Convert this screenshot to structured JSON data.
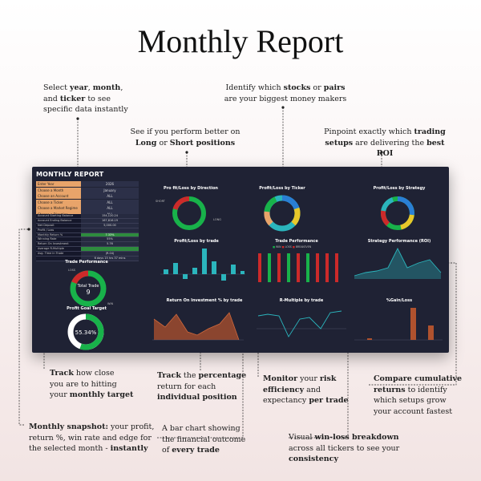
{
  "page": {
    "title": "Monthly Report"
  },
  "annotations": {
    "select": {
      "p1": "Select ",
      "b1": "year",
      "p2": ", ",
      "b2": "month",
      "p3": ",",
      "p4": "and ",
      "b3": "ticker",
      "p5": " to see",
      "p6": "specific data instantly"
    },
    "stocks": {
      "p1": "Identify which ",
      "b1": "stocks",
      "p2": " or ",
      "b2": "pairs",
      "p3": "are your biggest money makers"
    },
    "long": {
      "p1": "See if you perform better on",
      "b1": "Long",
      "p2": " or ",
      "b2": "Short positions"
    },
    "setups": {
      "p1": "Pinpoint exactly which ",
      "b1": "trading",
      "b2": "setups",
      "p2": " are delivering the ",
      "b3": "best ROI"
    },
    "target": {
      "b1": "Track",
      "p1": " how close",
      "p2": "you are to hitting",
      "p3": "your ",
      "b2": "monthly target"
    },
    "percentage": {
      "b1": "Track",
      "p1": " the ",
      "b2": "percentage",
      "p2": "return for each",
      "b3": "individual position"
    },
    "risk": {
      "b1": "Monitor",
      "p1": " your ",
      "b2": "risk",
      "b3": "efficiency",
      "p2": " and",
      "p3": "expectancy ",
      "b4": "per trade"
    },
    "cumulative": {
      "b1": "Compare cumulative",
      "b2": "returns",
      "p1": " to identify",
      "p2": "which setups grow",
      "p3": "your account fastest"
    },
    "snapshot": {
      "b1": "Monthly snapshot:",
      "p1": " your profit,",
      "p2": "return %, win rate and edge for",
      "p3": "the selected month - ",
      "b2": "instantly"
    },
    "barchart": {
      "p1": "A bar chart showing",
      "p2": "the financial outcome",
      "p3": "of ",
      "b1": "every trade"
    },
    "winloss": {
      "p1": "Visual ",
      "b1": "win-loss breakdown",
      "p2": "across all tickers to see your",
      "b2": "consistency"
    }
  },
  "dashboard": {
    "title": "MONTHLY REPORT",
    "filters": [
      {
        "label": "Enter Year",
        "value": "2026"
      },
      {
        "label": "Choose a Month",
        "value": "January"
      },
      {
        "label": "Choose an Account",
        "value": "ALL"
      },
      {
        "label": "Choose a Ticker",
        "value": "ALL"
      },
      {
        "label": "Choose a Market Regime",
        "value": "ALL"
      },
      {
        "label": "Choose a Direction",
        "value": "ALL"
      }
    ],
    "stats": [
      {
        "label": "Account Starting Balance",
        "value": "154,120.24",
        "green": false
      },
      {
        "label": "Account Ending Balance",
        "value": "167,816.19",
        "green": false
      },
      {
        "label": "Net Deposit",
        "value": "5,000.00",
        "green": false
      },
      {
        "label": "Profit / Loss",
        "value": "",
        "green": false
      },
      {
        "label": "Monthly Return %",
        "value": "7.33%",
        "green": true
      },
      {
        "label": "Winning Rate",
        "value": "55%",
        "green": false
      },
      {
        "label": "Return On Investment",
        "value": "5.76",
        "green": false
      },
      {
        "label": "Average R-Multiple",
        "value": "",
        "green": true
      },
      {
        "label": "Avg. Time in Trade",
        "value": "(R.04)",
        "green": false
      },
      {
        "label": "",
        "value": "6 days 15 hrs 37 mins",
        "green": false
      }
    ],
    "trade_performance": {
      "title": "Trade Performance",
      "center_label": "Total Trade",
      "center_value": "9",
      "loss_label": "LOSS",
      "win_label": "WIN"
    },
    "profit_goal": {
      "title": "Profit Goal Target",
      "value": "55.34%"
    },
    "panels": {
      "direction": "Pro fit/Loss by Direction",
      "ticker": "Profit/Loss by Ticker",
      "strategy": "Profit/Loss by Strategy",
      "by_trade": "Profit/Loss by trade",
      "trade_perf": "Trade Performance",
      "strategy_perf": "Strategy Performance (ROI)",
      "roi_trade": "Return On Investment % by trade",
      "r_multiple": "R-Multiple by trade",
      "gain_loss": "%Gain/Loss"
    },
    "legend": {
      "win": "WIN",
      "loss": "LOSS",
      "breakeven": "BREAKEVEN"
    },
    "direction_labels": {
      "short": "SHORT",
      "long": "LONG"
    }
  },
  "colors": {
    "dash_bg": "#1f2234",
    "teal": "#2bb5bd",
    "green": "#18b24a",
    "red": "#cc2a2a",
    "brown": "#b0522e",
    "orange": "#e8a46a",
    "blue": "#2a7fd4",
    "yellow": "#e8c82a"
  }
}
